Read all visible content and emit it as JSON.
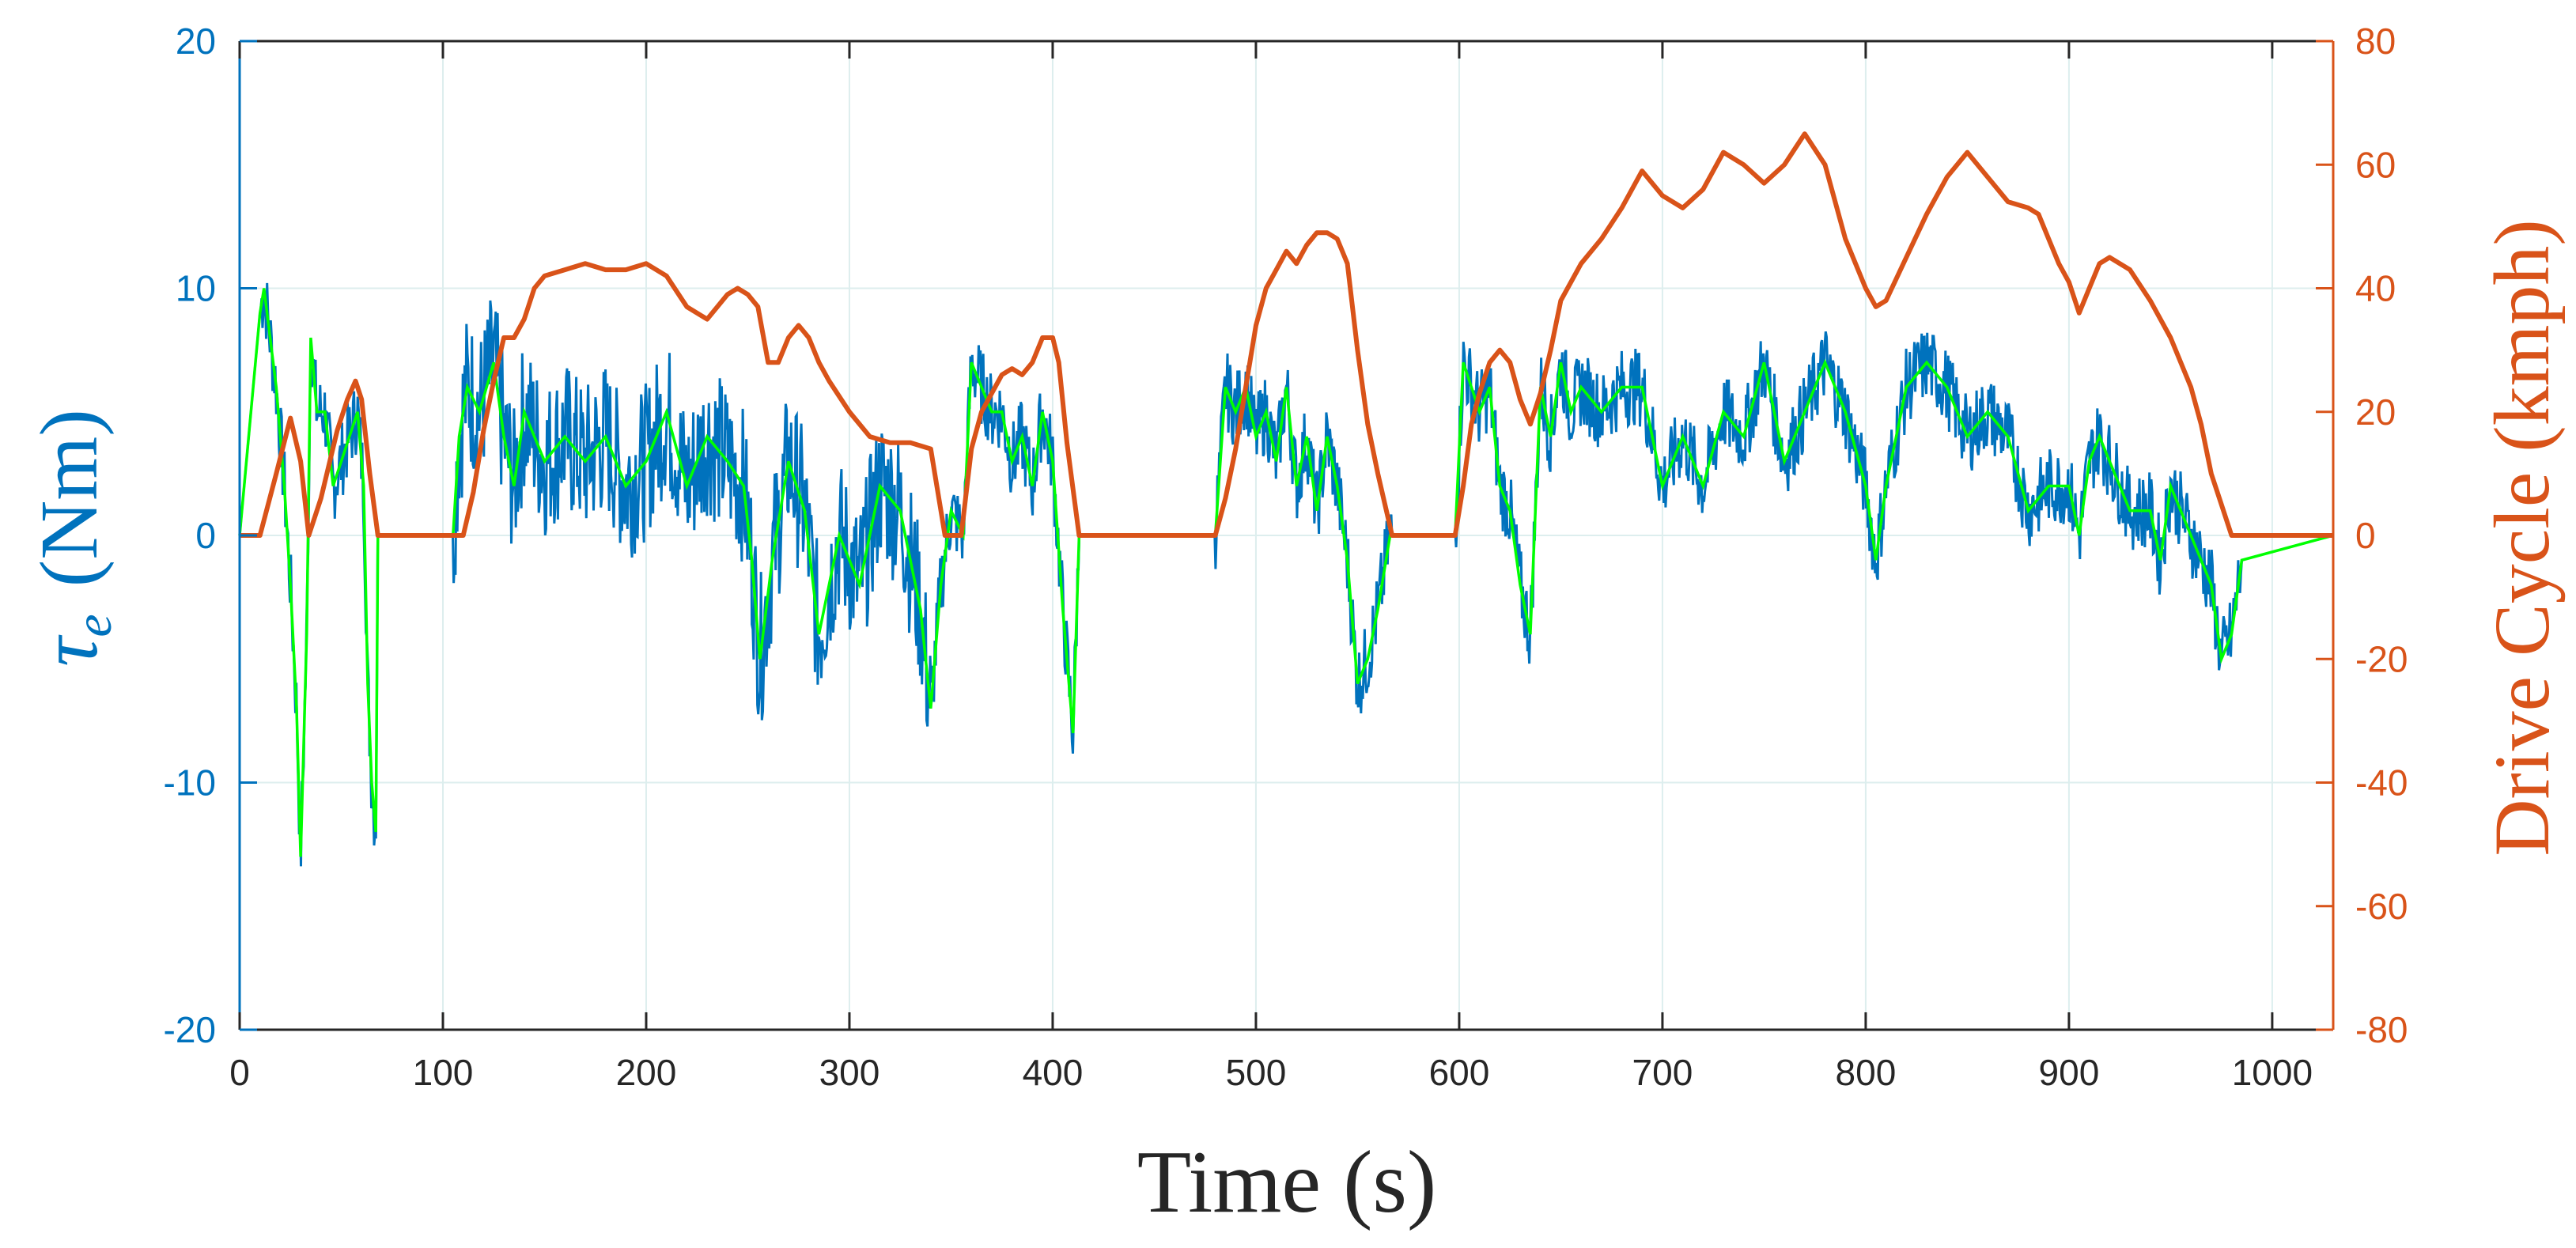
{
  "chart_data": {
    "type": "line",
    "xlabel": "Time (s)",
    "ylabel_left": {
      "symbol": "τ",
      "subscript": "e",
      "unit": "(Nm)"
    },
    "ylabel_right": "Drive Cycle (kmph)",
    "xlim": [
      0,
      1030
    ],
    "ylim_left": [
      -20,
      20
    ],
    "ylim_right": [
      -80,
      80
    ],
    "xticks": [
      0,
      100,
      200,
      300,
      400,
      500,
      600,
      700,
      800,
      900,
      1000
    ],
    "xtick_labels": [
      "0",
      "100",
      "200",
      "300",
      "400",
      "500",
      "600",
      "700",
      "800",
      "900",
      "1000"
    ],
    "yticks_left": [
      -20,
      -10,
      0,
      10,
      20
    ],
    "ytick_labels_left": [
      "-20",
      "-10",
      "0",
      "10",
      "20"
    ],
    "yticks_right": [
      -80,
      -60,
      -40,
      -20,
      0,
      20,
      40,
      60,
      80
    ],
    "ytick_labels_right": [
      "-80",
      "-60",
      "-40",
      "-20",
      "0",
      "20",
      "40",
      "60",
      "80"
    ],
    "grid": true,
    "colors": {
      "torque": "#0072BD",
      "reference": "#00FF00",
      "drive_cycle": "#D95319",
      "axis": "#262626",
      "grid": "#DDEEEE"
    },
    "series": [
      {
        "axis": "right",
        "color": "#D95319",
        "x": [
          0,
          10,
          18,
          25,
          30,
          34,
          40,
          48,
          53,
          57,
          60,
          64,
          68,
          105,
          110,
          115,
          120,
          125,
          130,
          135,
          140,
          145,
          150,
          160,
          170,
          180,
          190,
          200,
          210,
          220,
          230,
          240,
          245,
          250,
          255,
          260,
          265,
          270,
          275,
          280,
          285,
          290,
          300,
          310,
          320,
          330,
          340,
          343,
          347,
          350,
          355,
          360,
          365,
          370,
          375,
          380,
          385,
          390,
          395,
          400,
          403,
          407,
          413,
          480,
          485,
          490,
          495,
          500,
          505,
          510,
          515,
          520,
          525,
          530,
          535,
          540,
          545,
          550,
          555,
          560,
          567,
          598,
          602,
          606,
          610,
          615,
          620,
          625,
          630,
          635,
          640,
          645,
          650,
          660,
          670,
          680,
          690,
          700,
          710,
          720,
          730,
          740,
          750,
          760,
          770,
          780,
          790,
          800,
          805,
          810,
          820,
          830,
          840,
          850,
          860,
          870,
          880,
          885,
          890,
          895,
          900,
          905,
          910,
          915,
          920,
          930,
          940,
          950,
          960,
          965,
          970,
          975,
          980,
          985,
          1030
        ],
        "y": [
          0,
          0,
          10,
          19,
          12,
          0,
          6,
          17,
          22,
          25,
          22,
          10,
          0,
          0,
          0,
          7,
          17,
          25,
          32,
          32,
          35,
          40,
          42,
          43,
          44,
          43,
          43,
          44,
          42,
          37,
          35,
          39,
          40,
          39,
          37,
          28,
          28,
          32,
          34,
          32,
          28,
          25,
          20,
          16,
          15,
          15,
          14,
          8,
          0,
          0,
          0,
          14,
          20,
          23,
          26,
          27,
          26,
          28,
          32,
          32,
          28,
          15,
          0,
          0,
          6,
          14,
          24,
          34,
          40,
          43,
          46,
          44,
          47,
          49,
          49,
          48,
          44,
          30,
          18,
          10,
          0,
          0,
          8,
          18,
          23,
          28,
          30,
          28,
          22,
          18,
          23,
          30,
          38,
          44,
          48,
          53,
          59,
          55,
          53,
          56,
          62,
          60,
          57,
          60,
          65,
          60,
          48,
          40,
          37,
          38,
          45,
          52,
          58,
          62,
          58,
          54,
          53,
          52,
          48,
          44,
          41,
          36,
          40,
          44,
          45,
          43,
          38,
          32,
          24,
          18,
          10,
          5,
          0,
          0,
          0
        ]
      },
      {
        "axis": "left",
        "color": "#00FF00",
        "x": [
          0,
          10,
          12,
          15,
          18,
          22,
          25,
          28,
          30,
          33,
          35,
          38,
          42,
          46,
          50,
          54,
          58,
          61,
          63,
          65,
          67,
          68,
          105,
          108,
          112,
          118,
          125,
          130,
          135,
          140,
          150,
          160,
          170,
          180,
          190,
          200,
          210,
          220,
          230,
          240,
          248,
          252,
          256,
          262,
          270,
          278,
          285,
          295,
          305,
          315,
          325,
          335,
          340,
          345,
          350,
          356,
          360,
          365,
          370,
          375,
          380,
          385,
          390,
          395,
          400,
          405,
          410,
          413,
          480,
          485,
          490,
          495,
          500,
          505,
          510,
          515,
          520,
          525,
          530,
          535,
          540,
          545,
          550,
          555,
          560,
          566,
          567,
          598,
          602,
          606,
          610,
          615,
          620,
          625,
          630,
          635,
          640,
          645,
          650,
          655,
          660,
          670,
          680,
          690,
          700,
          710,
          720,
          730,
          740,
          750,
          760,
          770,
          780,
          790,
          800,
          805,
          810,
          815,
          820,
          830,
          840,
          850,
          860,
          870,
          880,
          890,
          900,
          905,
          910,
          915,
          920,
          930,
          940,
          945,
          950,
          960,
          970,
          975,
          980,
          985,
          1030
        ],
        "y": [
          0,
          9,
          10,
          8,
          6,
          2,
          -2,
          -7,
          -13,
          -4,
          8,
          5,
          5,
          2,
          3,
          4,
          5,
          2,
          -6,
          -10,
          -12,
          0,
          0,
          4,
          6,
          5,
          7,
          4,
          2,
          5,
          3,
          4,
          3,
          4,
          2,
          3,
          5,
          2,
          4,
          3,
          2,
          -1,
          -5,
          -1,
          3,
          1,
          -4,
          0,
          -2,
          2,
          1,
          -3,
          -7,
          -2,
          1,
          0,
          7,
          6,
          5,
          5,
          3,
          4,
          2,
          5,
          3,
          -3,
          -8,
          0,
          0,
          6,
          5,
          6,
          4,
          5,
          3,
          6,
          2,
          4,
          1,
          4,
          2,
          -1,
          -6,
          -5,
          -3,
          0,
          0,
          0,
          7,
          6,
          5,
          6,
          2,
          1,
          -2,
          -4,
          6,
          4,
          7,
          5,
          6,
          5,
          6,
          6,
          2,
          4,
          2,
          5,
          4,
          7,
          3,
          5,
          7,
          5,
          2,
          -1,
          2,
          4,
          6,
          7,
          6,
          4,
          5,
          4,
          1,
          2,
          2,
          0,
          3,
          4,
          3,
          1,
          1,
          -1,
          2,
          0,
          -2,
          -5,
          -4,
          -1,
          0
        ]
      }
    ]
  }
}
